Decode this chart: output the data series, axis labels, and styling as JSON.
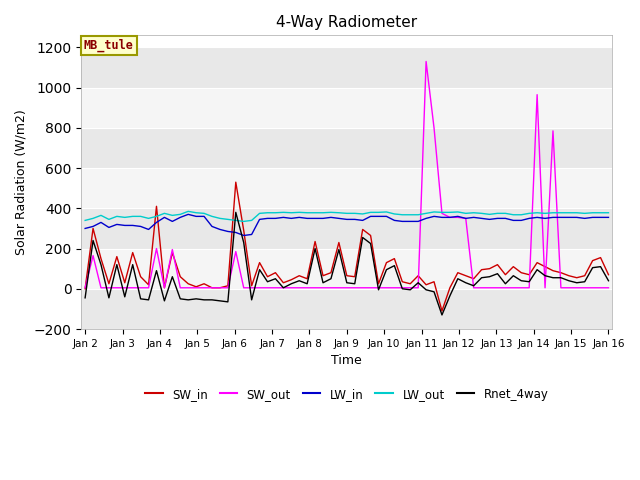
{
  "title": "4-Way Radiometer",
  "xlabel": "Time",
  "ylabel": "Solar Radiation (W/m2)",
  "annotation": "MB_tule",
  "ylim": [
    -200,
    1260
  ],
  "yticks": [
    -200,
    0,
    200,
    400,
    600,
    800,
    1000,
    1200
  ],
  "xtick_labels": [
    "Jan 2",
    "Jan 3",
    "Jan 4",
    "Jan 5",
    "Jan 6",
    "Jan 7",
    "Jan 8",
    "Jan 9",
    "Jan 10",
    "Jan 11",
    "Jan 12",
    "Jan 13",
    "Jan 14",
    "Jan 15",
    "Jan 16"
  ],
  "legend": [
    "SW_in",
    "SW_out",
    "LW_in",
    "LW_out",
    "Rnet_4way"
  ],
  "legend_colors": [
    "#cc0000",
    "#ff00ff",
    "#0000cc",
    "#00cccc",
    "#000000"
  ],
  "SW_in": [
    0,
    300,
    150,
    25,
    160,
    30,
    180,
    60,
    20,
    410,
    5,
    180,
    60,
    25,
    10,
    25,
    5,
    5,
    15,
    530,
    290,
    15,
    130,
    60,
    80,
    30,
    45,
    65,
    50,
    235,
    65,
    80,
    230,
    65,
    60,
    295,
    265,
    25,
    130,
    150,
    35,
    25,
    65,
    20,
    35,
    -110,
    5,
    80,
    65,
    50,
    95,
    100,
    120,
    70,
    110,
    80,
    70,
    130,
    110,
    90,
    80,
    65,
    55,
    65,
    140,
    155,
    70
  ],
  "SW_out": [
    5,
    165,
    5,
    5,
    5,
    5,
    5,
    5,
    5,
    200,
    5,
    195,
    5,
    5,
    5,
    5,
    5,
    5,
    5,
    185,
    5,
    5,
    5,
    5,
    5,
    5,
    5,
    5,
    5,
    5,
    5,
    5,
    5,
    5,
    5,
    5,
    5,
    5,
    5,
    5,
    5,
    5,
    5,
    1130,
    800,
    375,
    355,
    355,
    350,
    5,
    5,
    5,
    5,
    5,
    5,
    5,
    5,
    965,
    5,
    785,
    5,
    5,
    5,
    5,
    5,
    5,
    5
  ],
  "LW_in": [
    300,
    310,
    330,
    305,
    320,
    315,
    315,
    310,
    295,
    330,
    355,
    335,
    355,
    370,
    360,
    360,
    310,
    295,
    285,
    280,
    265,
    270,
    345,
    350,
    350,
    355,
    350,
    355,
    350,
    350,
    350,
    355,
    350,
    345,
    345,
    340,
    360,
    360,
    360,
    340,
    335,
    335,
    335,
    350,
    360,
    355,
    355,
    360,
    350,
    355,
    350,
    345,
    350,
    350,
    340,
    340,
    350,
    355,
    350,
    355,
    355,
    355,
    355,
    350,
    355,
    355,
    355
  ],
  "LW_out": [
    340,
    350,
    365,
    345,
    360,
    355,
    360,
    360,
    350,
    360,
    375,
    365,
    370,
    385,
    378,
    375,
    360,
    350,
    345,
    340,
    335,
    340,
    375,
    378,
    378,
    380,
    378,
    380,
    378,
    378,
    378,
    380,
    378,
    375,
    375,
    372,
    380,
    380,
    382,
    372,
    368,
    368,
    368,
    375,
    382,
    380,
    380,
    382,
    375,
    378,
    375,
    370,
    375,
    375,
    368,
    368,
    375,
    378,
    375,
    378,
    378,
    378,
    378,
    375,
    378,
    378,
    378
  ],
  "Rnet_4way": [
    -45,
    240,
    120,
    -45,
    120,
    -40,
    120,
    -50,
    -55,
    90,
    -60,
    60,
    -50,
    -55,
    -50,
    -55,
    -55,
    -60,
    -65,
    380,
    230,
    -55,
    95,
    35,
    50,
    5,
    25,
    40,
    25,
    200,
    30,
    50,
    195,
    30,
    25,
    255,
    225,
    -5,
    95,
    115,
    0,
    -5,
    30,
    -5,
    -15,
    -130,
    -35,
    50,
    30,
    15,
    55,
    60,
    75,
    25,
    65,
    40,
    35,
    95,
    65,
    55,
    55,
    40,
    30,
    35,
    105,
    110,
    40
  ]
}
